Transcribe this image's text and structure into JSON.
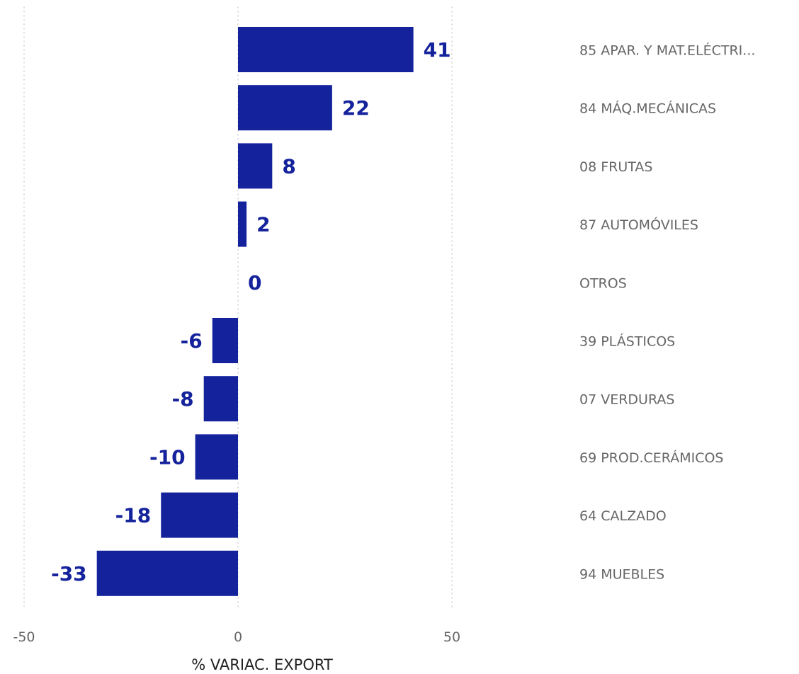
{
  "chart_data": {
    "type": "bar",
    "orientation": "horizontal",
    "title": "",
    "xlabel": "% VARIAC. EXPORT",
    "ylabel": "",
    "xlim": [
      -50,
      50
    ],
    "x_ticks": [
      "-50",
      "0",
      "50"
    ],
    "grid": true,
    "bar_color": "#14229c",
    "categories": [
      "85 APAR. Y MAT.ELÉCTRI...",
      "84 MÁQ.MECÁNICAS",
      "08 FRUTAS",
      "87 AUTOMÓVILES",
      "OTROS",
      "39 PLÁSTICOS",
      "07 VERDURAS",
      "69 PROD.CERÁMICOS",
      "64 CALZADO",
      "94 MUEBLES"
    ],
    "values": [
      41,
      22,
      8,
      2,
      0,
      -6,
      -8,
      -10,
      -18,
      -33
    ],
    "data_labels": [
      "41",
      "22",
      "8",
      "2",
      "0",
      "-6",
      "-8",
      "-10",
      "-18",
      "-33"
    ]
  }
}
